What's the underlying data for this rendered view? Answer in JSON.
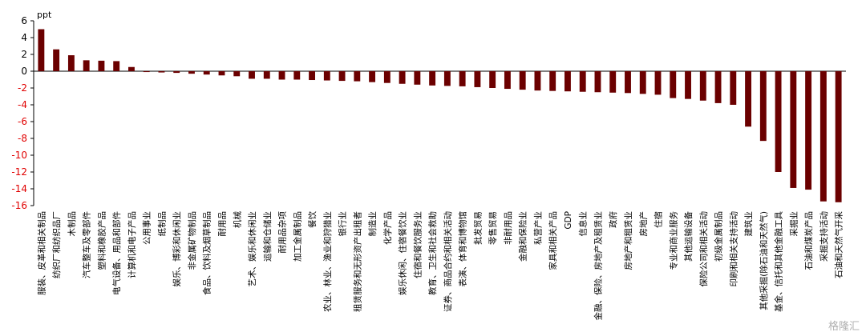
{
  "chart_data": {
    "type": "bar",
    "unit_label": "ppt",
    "ylim": [
      -16,
      6
    ],
    "yticks": [
      6,
      4,
      2,
      0,
      -2,
      -4,
      -6,
      -8,
      -10,
      -12,
      -14,
      -16
    ],
    "bar_color": "#6b0000",
    "positive_tick_color": "#000000",
    "negative_tick_color": "#e00000",
    "grid": false,
    "categories": [
      "服装、皮革和相关制品",
      "纺织厂和纺织品厂",
      "木制品",
      "汽车整车及零部件",
      "塑料和橡胶产品",
      "电气设备、用品和部件",
      "计算机和电子产品",
      "公用事业",
      "纸制品",
      "娱乐、博彩和休闲业",
      "非金属矿物制品",
      "食品、饮料及烟草制品",
      "耐用品",
      "机械",
      "艺术、娱乐和休闲业",
      "运输和仓储业",
      "耐用品杂项",
      "加工金属制品",
      "餐饮",
      "农业、林业、渔业和狩猎业",
      "银行业",
      "租赁服务和无形资产出租者",
      "制造业",
      "化学产品",
      "娱乐休闲、住宿餐饮业",
      "住宿和餐饮服务业",
      "教育、卫生和社会救助",
      "证券、商品合约和相关活动",
      "表演、体育和博物馆",
      "批发贸易",
      "零售贸易",
      "非耐用品",
      "金融和保险业",
      "私营产业",
      "家具和相关产品",
      "GDP",
      "信息业",
      "金融、保险、房地产及租赁业",
      "政府",
      "房地产和租赁业",
      "房地产",
      "住宿",
      "专业和商业服务",
      "其他运输设备",
      "保险公司和相关活动",
      "初级金属制品",
      "印刷和相关支持活动",
      "建筑业",
      "其他采掘(除石油和天然气)",
      "基金、信托和其他金融工具",
      "采掘业",
      "石油和煤炭产品",
      "采掘支持活动",
      "石油和天然气开采"
    ],
    "values": [
      5.0,
      2.6,
      1.9,
      1.3,
      1.25,
      1.2,
      0.5,
      -0.1,
      -0.15,
      -0.2,
      -0.3,
      -0.4,
      -0.5,
      -0.6,
      -0.9,
      -0.9,
      -1.0,
      -1.0,
      -1.05,
      -1.1,
      -1.15,
      -1.2,
      -1.3,
      -1.4,
      -1.5,
      -1.6,
      -1.7,
      -1.75,
      -1.8,
      -1.9,
      -2.0,
      -2.1,
      -2.2,
      -2.3,
      -2.35,
      -2.4,
      -2.45,
      -2.5,
      -2.55,
      -2.6,
      -2.7,
      -2.8,
      -3.2,
      -3.3,
      -3.5,
      -3.8,
      -4.0,
      -6.6,
      -8.3,
      -12.0,
      -13.9,
      -14.1,
      -15.5,
      -15.6
    ]
  },
  "watermark": "格隆汇"
}
